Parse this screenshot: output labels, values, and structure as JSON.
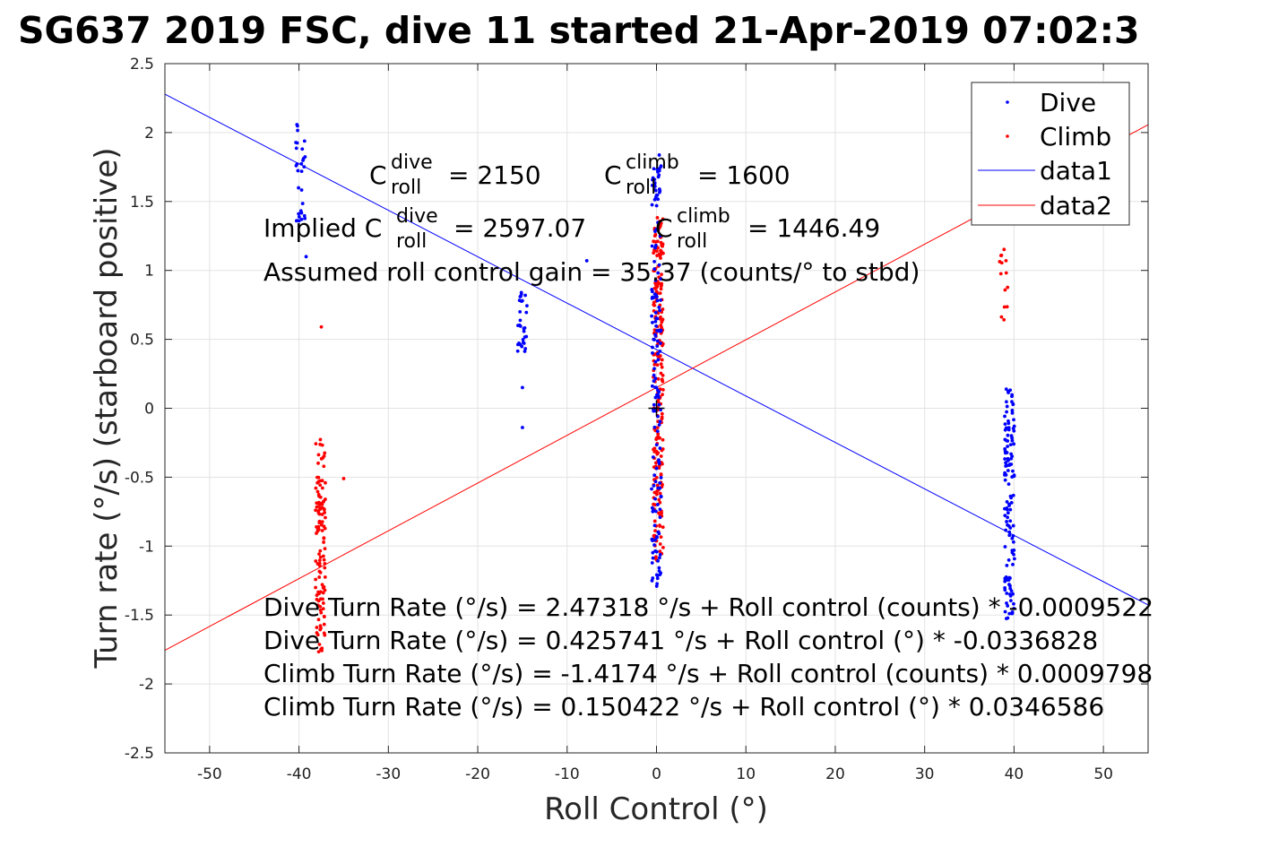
{
  "chart_data": {
    "type": "scatter",
    "title": "SG637 2019 FSC, dive 11 started 21-Apr-2019 07:02:3",
    "xlabel": "Roll Control (°)",
    "ylabel": "Turn rate (°/s) (starboard positive)",
    "xlim": [
      -55,
      55
    ],
    "ylim": [
      -2.5,
      2.5
    ],
    "xticks": [
      -50,
      -40,
      -30,
      -20,
      -10,
      0,
      10,
      20,
      30,
      40,
      50
    ],
    "yticks": [
      2.5,
      2,
      1.5,
      1,
      0.5,
      0,
      -0.5,
      -1,
      -1.5,
      -2,
      -2.5
    ],
    "grid": true,
    "legend_position": "top-right",
    "legend": [
      "Dive",
      "Climb",
      "data1",
      "data2"
    ],
    "colors": {
      "dive": "#0000ff",
      "climb": "#ff0000",
      "center_mark": "#000000"
    },
    "series": [
      {
        "name": "Dive",
        "kind": "points",
        "clusters": [
          {
            "x": -39.8,
            "y_min": 1.35,
            "y_max": 2.14,
            "count": 30
          },
          {
            "x": -39.2,
            "y_min": 1.1,
            "y_max": 1.1,
            "count": 1
          },
          {
            "x": -15,
            "y_min": 0.38,
            "y_max": 0.85,
            "count": 30
          },
          {
            "x": -15,
            "y_min": 0.15,
            "y_max": 0.15,
            "count": 1
          },
          {
            "x": -15,
            "y_min": -0.14,
            "y_max": -0.14,
            "count": 1
          },
          {
            "x": -7.8,
            "y_min": 1.07,
            "y_max": 1.07,
            "count": 1
          },
          {
            "x": 0,
            "y_min": -1.3,
            "y_max": 1.85,
            "count": 160
          },
          {
            "x": 39.5,
            "y_min": -1.55,
            "y_max": 0.14,
            "count": 130
          }
        ]
      },
      {
        "name": "Climb",
        "kind": "points",
        "clusters": [
          {
            "x": -37.6,
            "y_min": -1.78,
            "y_max": -0.22,
            "count": 120
          },
          {
            "x": -37.5,
            "y_min": 0.59,
            "y_max": 0.59,
            "count": 1
          },
          {
            "x": -35,
            "y_min": -0.51,
            "y_max": -0.51,
            "count": 1
          },
          {
            "x": 0.2,
            "y_min": -1.12,
            "y_max": 1.4,
            "count": 230
          },
          {
            "x": 38.9,
            "y_min": 0.64,
            "y_max": 1.5,
            "count": 14
          }
        ]
      },
      {
        "name": "data1",
        "kind": "line",
        "intercept": 0.425741,
        "slope": -0.0336828
      },
      {
        "name": "data2",
        "kind": "line",
        "intercept": 0.150422,
        "slope": 0.0346586
      }
    ],
    "center_mark": {
      "x": 0,
      "y": 0
    },
    "annotations": {
      "c_roll_dive": {
        "base": "C",
        "sup": "dive",
        "sub": "roll",
        "value": "= 2150"
      },
      "c_roll_climb": {
        "base": "C",
        "sup": "climb",
        "sub": "roll",
        "value": "= 1600"
      },
      "implied_dive": {
        "prefix": "Implied C",
        "sup": "dive",
        "sub": "roll",
        "value": "= 2597.07"
      },
      "implied_climb": {
        "base": "C",
        "sup": "climb",
        "sub": "roll",
        "value": "= 1446.49"
      },
      "gain": "Assumed roll control gain = 35.37 (counts/° to stbd)",
      "fits": [
        "Dive Turn Rate (°/s) = 2.47318 °/s + Roll control (counts) * -0.0009522",
        "Dive Turn Rate (°/s) = 0.425741 °/s + Roll control (°) * -0.0336828",
        "Climb Turn Rate (°/s) = -1.4174 °/s + Roll control (counts) * 0.0009798",
        "Climb Turn Rate (°/s) = 0.150422 °/s + Roll control (°) * 0.0346586"
      ]
    }
  }
}
